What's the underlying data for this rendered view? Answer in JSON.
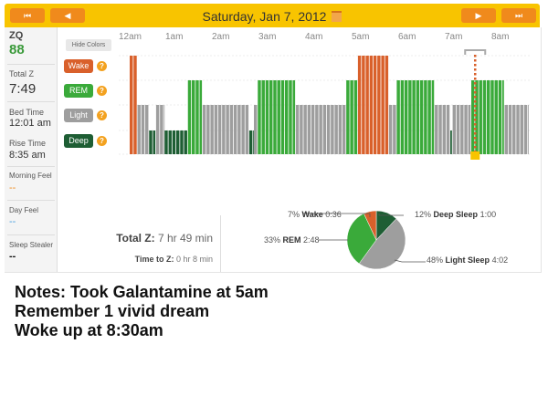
{
  "header": {
    "date": "Saturday, Jan 7, 2012",
    "nav": {
      "first": "⏮",
      "prev": "◀",
      "next": "▶",
      "last": "⏭"
    }
  },
  "sidebar": {
    "zq_label": "ZQ",
    "zq_value": "88",
    "total_z_label": "Total Z",
    "total_z_value": "7:49",
    "bed_time_label": "Bed Time",
    "bed_time_value": "12:01 am",
    "rise_time_label": "Rise Time",
    "rise_time_value": "8:35 am",
    "morning_feel_label": "Morning Feel",
    "morning_feel_value": "--",
    "day_feel_label": "Day Feel",
    "day_feel_value": "--",
    "sleep_stealer_label": "Sleep Stealer",
    "sleep_stealer_value": "--"
  },
  "chart": {
    "hide_colors": "Hide Colors",
    "hours": [
      "12am",
      "1am",
      "2am",
      "3am",
      "4am",
      "5am",
      "6am",
      "7am",
      "8am"
    ],
    "stages": [
      {
        "key": "wake",
        "label": "Wake",
        "color": "#d9602b"
      },
      {
        "key": "rem",
        "label": "REM",
        "color": "#3aaa3a"
      },
      {
        "key": "light",
        "label": "Light",
        "color": "#9e9e9e"
      },
      {
        "key": "deep",
        "label": "Deep",
        "color": "#1e5e34"
      }
    ],
    "help": "?",
    "segments_minutes_after_midnight": [
      [
        "wake",
        0,
        10
      ],
      [
        "light",
        10,
        25
      ],
      [
        "deep",
        25,
        34
      ],
      [
        "light",
        34,
        45
      ],
      [
        "deep",
        45,
        75
      ],
      [
        "rem",
        75,
        94
      ],
      [
        "light",
        94,
        154
      ],
      [
        "deep",
        154,
        160
      ],
      [
        "light",
        160,
        165
      ],
      [
        "rem",
        165,
        214
      ],
      [
        "light",
        214,
        279
      ],
      [
        "rem",
        279,
        294
      ],
      [
        "wake",
        294,
        334
      ],
      [
        "light",
        334,
        344
      ],
      [
        "rem",
        344,
        393
      ],
      [
        "light",
        393,
        413
      ],
      [
        "deep",
        413,
        416
      ],
      [
        "light",
        416,
        440
      ],
      [
        "rem",
        440,
        483
      ],
      [
        "light",
        483,
        514
      ]
    ],
    "cursor_minute": 445
  },
  "summary": {
    "total_label": "Total Z:",
    "total_value": "7 hr 49 min",
    "ttz_label": "Time to Z:",
    "ttz_value": "0 hr 8 min"
  },
  "pie": [
    {
      "name": "Deep Sleep",
      "pct": "12%",
      "time": "1:00",
      "value": 12,
      "color": "#1e5e34"
    },
    {
      "name": "Light Sleep",
      "pct": "48%",
      "time": "4:02",
      "value": 48,
      "color": "#9e9e9e"
    },
    {
      "name": "REM",
      "pct": "33%",
      "time": "2:48",
      "value": 33,
      "color": "#3aaa3a"
    },
    {
      "name": "Wake",
      "pct": "7%",
      "time": "0:36",
      "value": 7,
      "color": "#d9602b"
    }
  ],
  "notes": [
    "Notes: Took Galantamine at 5am",
    "Remember 1 vivid dream",
    "Woke up at 8:30am"
  ]
}
